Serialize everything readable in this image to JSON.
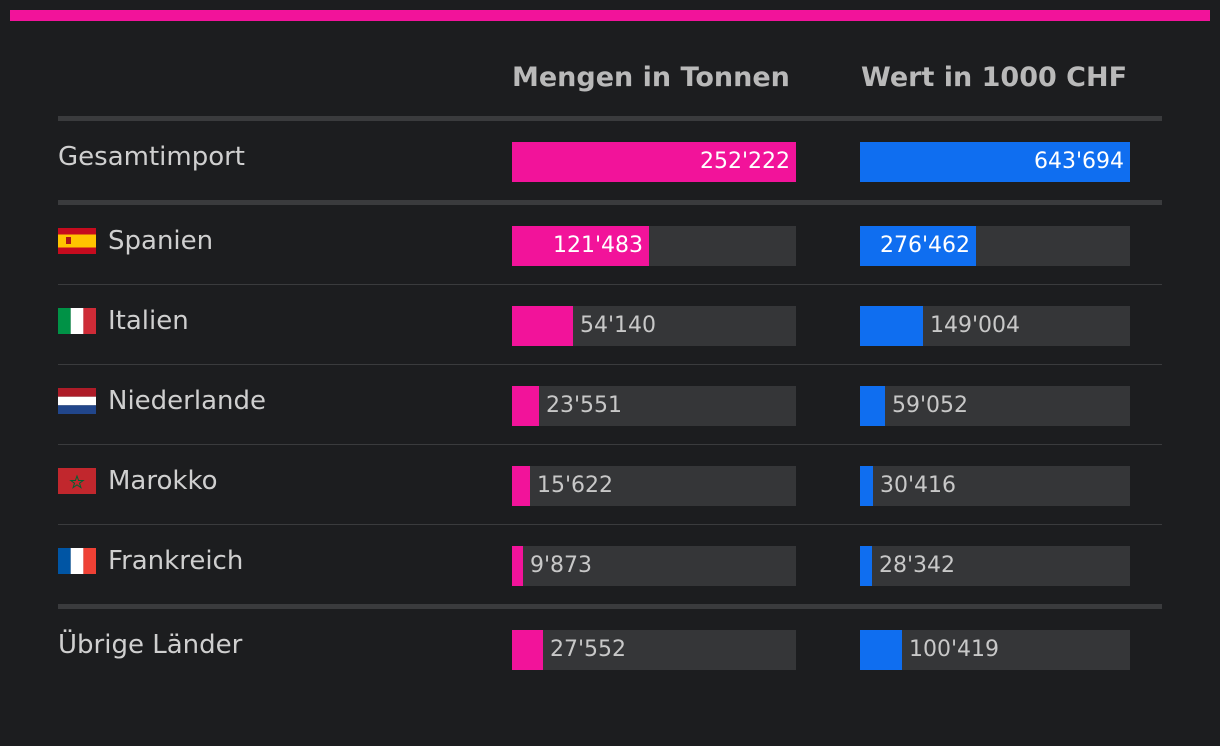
{
  "chart_data": {
    "type": "bar",
    "columns": [
      "Mengen in Tonnen",
      "Wert in 1000 CHF"
    ],
    "total": {
      "label": "Gesamtimport",
      "values": [
        252222,
        643694
      ],
      "display": [
        "252'222",
        "643'694"
      ]
    },
    "rows": [
      {
        "label": "Spanien",
        "flag": "spain-flag-icon",
        "values": [
          121483,
          276462
        ],
        "display": [
          "121'483",
          "276'462"
        ]
      },
      {
        "label": "Italien",
        "flag": "italy-flag-icon",
        "values": [
          54140,
          149004
        ],
        "display": [
          "54'140",
          "149'004"
        ]
      },
      {
        "label": "Niederlande",
        "flag": "netherlands-flag-icon",
        "values": [
          23551,
          59052
        ],
        "display": [
          "23'551",
          "59'052"
        ]
      },
      {
        "label": "Marokko",
        "flag": "morocco-flag-icon",
        "values": [
          15622,
          30416
        ],
        "display": [
          "15'622",
          "30'416"
        ]
      },
      {
        "label": "Frankreich",
        "flag": "france-flag-icon",
        "values": [
          9873,
          28342
        ],
        "display": [
          "9'873",
          "28'342"
        ]
      }
    ],
    "other": {
      "label": "Übrige Länder",
      "values": [
        27552,
        100419
      ],
      "display": [
        "27'552",
        "100'419"
      ]
    },
    "colors": {
      "quantity": "#f2139a",
      "value": "#0f6ef0",
      "accent": "#f2139a"
    }
  }
}
